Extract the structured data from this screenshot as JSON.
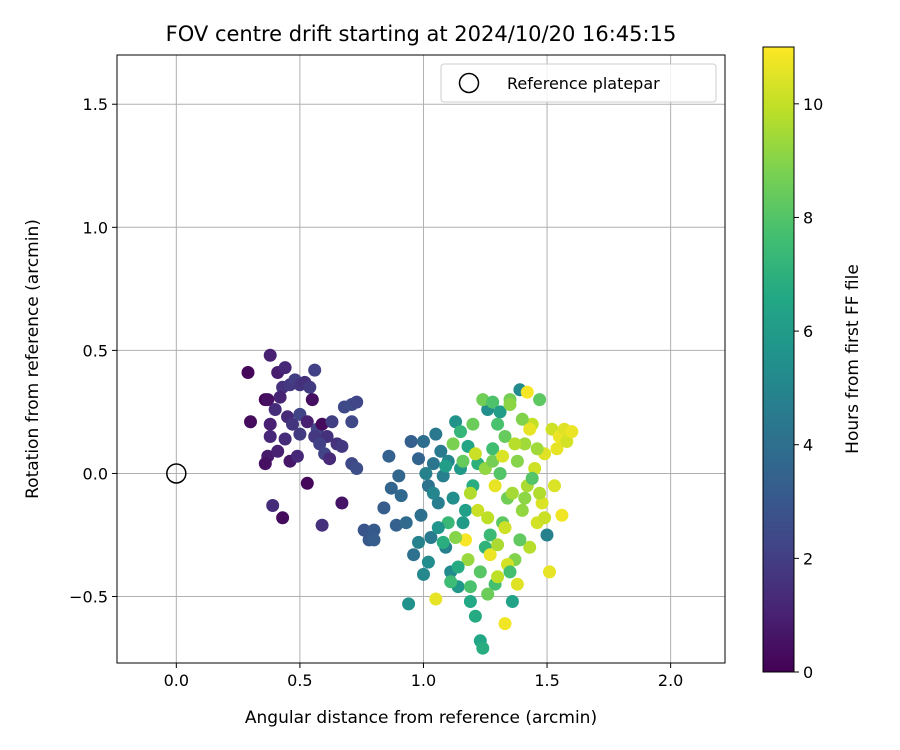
{
  "chart_data": {
    "type": "scatter",
    "title": "FOV centre drift starting at 2024/10/20 16:45:15",
    "xlabel": "Angular distance from reference (arcmin)",
    "ylabel": "Rotation from reference (arcmin)",
    "xlim": [
      -0.24,
      2.22
    ],
    "ylim": [
      -0.77,
      1.7
    ],
    "x_ticks": [
      0.0,
      0.5,
      1.0,
      1.5,
      2.0
    ],
    "y_ticks": [
      -0.5,
      0.0,
      0.5,
      1.0,
      1.5
    ],
    "x_tick_labels": [
      "0.0",
      "0.5",
      "1.0",
      "1.5",
      "2.0"
    ],
    "y_tick_labels": [
      "−0.5",
      "0.0",
      "0.5",
      "1.0",
      "1.5"
    ],
    "grid": true,
    "legend": {
      "position": "top-right",
      "entries": [
        {
          "label": "Reference platepar",
          "marker": "hollow-circle"
        }
      ]
    },
    "reference_point": {
      "x": 0.0,
      "y": 0.0
    },
    "colorbar": {
      "label": "Hours from first FF file",
      "colormap": "viridis",
      "range": [
        0,
        11
      ],
      "ticks": [
        0,
        2,
        4,
        6,
        8,
        10
      ],
      "tick_labels": [
        "0",
        "2",
        "4",
        "6",
        "8",
        "10"
      ]
    },
    "points": [
      {
        "x": 0.29,
        "y": 0.41,
        "c": 0.2
      },
      {
        "x": 0.36,
        "y": 0.3,
        "c": 0.1
      },
      {
        "x": 0.37,
        "y": 0.3,
        "c": 0.5
      },
      {
        "x": 0.38,
        "y": 0.48,
        "c": 1.0
      },
      {
        "x": 0.41,
        "y": 0.41,
        "c": 0.9
      },
      {
        "x": 0.44,
        "y": 0.43,
        "c": 1.2
      },
      {
        "x": 0.38,
        "y": 0.2,
        "c": 1.0
      },
      {
        "x": 0.3,
        "y": 0.21,
        "c": 0.3
      },
      {
        "x": 0.38,
        "y": 0.15,
        "c": 1.2
      },
      {
        "x": 0.4,
        "y": 0.26,
        "c": 1.4
      },
      {
        "x": 0.43,
        "y": 0.35,
        "c": 1.6
      },
      {
        "x": 0.46,
        "y": 0.36,
        "c": 1.8
      },
      {
        "x": 0.48,
        "y": 0.38,
        "c": 2.0
      },
      {
        "x": 0.5,
        "y": 0.36,
        "c": 1.7
      },
      {
        "x": 0.52,
        "y": 0.37,
        "c": 1.5
      },
      {
        "x": 0.54,
        "y": 0.35,
        "c": 1.9
      },
      {
        "x": 0.56,
        "y": 0.42,
        "c": 2.1
      },
      {
        "x": 0.42,
        "y": 0.31,
        "c": 1.1
      },
      {
        "x": 0.45,
        "y": 0.23,
        "c": 1.3
      },
      {
        "x": 0.47,
        "y": 0.2,
        "c": 1.7
      },
      {
        "x": 0.5,
        "y": 0.24,
        "c": 2.2
      },
      {
        "x": 0.53,
        "y": 0.21,
        "c": 1.0
      },
      {
        "x": 0.55,
        "y": 0.3,
        "c": 0.4
      },
      {
        "x": 0.57,
        "y": 0.18,
        "c": 2.3
      },
      {
        "x": 0.59,
        "y": 0.2,
        "c": 0.3
      },
      {
        "x": 0.61,
        "y": 0.15,
        "c": 1.5
      },
      {
        "x": 0.63,
        "y": 0.21,
        "c": 2.0
      },
      {
        "x": 0.65,
        "y": 0.12,
        "c": 1.6
      },
      {
        "x": 0.67,
        "y": 0.11,
        "c": 1.8
      },
      {
        "x": 0.68,
        "y": 0.27,
        "c": 2.4
      },
      {
        "x": 0.71,
        "y": 0.28,
        "c": 2.5
      },
      {
        "x": 0.73,
        "y": 0.29,
        "c": 2.3
      },
      {
        "x": 0.71,
        "y": 0.21,
        "c": 2.4
      },
      {
        "x": 0.37,
        "y": 0.07,
        "c": 0.8
      },
      {
        "x": 0.36,
        "y": 0.04,
        "c": 0.5
      },
      {
        "x": 0.41,
        "y": 0.09,
        "c": 1.0
      },
      {
        "x": 0.44,
        "y": 0.14,
        "c": 1.4
      },
      {
        "x": 0.46,
        "y": 0.05,
        "c": 0.7
      },
      {
        "x": 0.49,
        "y": 0.07,
        "c": 1.2
      },
      {
        "x": 0.5,
        "y": 0.16,
        "c": 1.9
      },
      {
        "x": 0.53,
        "y": -0.04,
        "c": 0.2
      },
      {
        "x": 0.56,
        "y": 0.15,
        "c": 1.8
      },
      {
        "x": 0.58,
        "y": 0.12,
        "c": 2.1
      },
      {
        "x": 0.6,
        "y": 0.08,
        "c": 2.2
      },
      {
        "x": 0.62,
        "y": 0.06,
        "c": 1.3
      },
      {
        "x": 0.67,
        "y": -0.12,
        "c": 0.6
      },
      {
        "x": 0.59,
        "y": -0.21,
        "c": 1.5
      },
      {
        "x": 0.39,
        "y": -0.13,
        "c": 1.4
      },
      {
        "x": 0.43,
        "y": -0.18,
        "c": 0.3
      },
      {
        "x": 0.71,
        "y": 0.04,
        "c": 2.4
      },
      {
        "x": 0.73,
        "y": 0.02,
        "c": 2.6
      },
      {
        "x": 0.76,
        "y": -0.23,
        "c": 2.9
      },
      {
        "x": 0.78,
        "y": -0.27,
        "c": 3.0
      },
      {
        "x": 0.8,
        "y": -0.23,
        "c": 3.1
      },
      {
        "x": 0.8,
        "y": -0.27,
        "c": 3.2
      },
      {
        "x": 0.84,
        "y": -0.14,
        "c": 3.2
      },
      {
        "x": 0.86,
        "y": 0.07,
        "c": 3.4
      },
      {
        "x": 0.87,
        "y": -0.06,
        "c": 3.5
      },
      {
        "x": 0.89,
        "y": -0.21,
        "c": 3.4
      },
      {
        "x": 0.9,
        "y": -0.01,
        "c": 3.6
      },
      {
        "x": 0.91,
        "y": -0.09,
        "c": 3.7
      },
      {
        "x": 0.93,
        "y": -0.2,
        "c": 3.8
      },
      {
        "x": 0.95,
        "y": 0.13,
        "c": 3.3
      },
      {
        "x": 0.96,
        "y": -0.33,
        "c": 4.1
      },
      {
        "x": 0.98,
        "y": 0.06,
        "c": 3.5
      },
      {
        "x": 0.99,
        "y": -0.17,
        "c": 4.0
      },
      {
        "x": 1.0,
        "y": 0.13,
        "c": 3.9
      },
      {
        "x": 1.02,
        "y": -0.05,
        "c": 4.2
      },
      {
        "x": 1.03,
        "y": -0.26,
        "c": 4.5
      },
      {
        "x": 1.04,
        "y": 0.04,
        "c": 4.3
      },
      {
        "x": 1.05,
        "y": 0.16,
        "c": 4.4
      },
      {
        "x": 1.06,
        "y": -0.12,
        "c": 4.6
      },
      {
        "x": 1.07,
        "y": 0.09,
        "c": 4.5
      },
      {
        "x": 1.08,
        "y": -0.01,
        "c": 4.7
      },
      {
        "x": 1.09,
        "y": -0.3,
        "c": 4.8
      },
      {
        "x": 1.1,
        "y": 0.05,
        "c": 5.0
      },
      {
        "x": 1.11,
        "y": -0.4,
        "c": 5.2
      },
      {
        "x": 1.12,
        "y": -0.1,
        "c": 5.4
      },
      {
        "x": 1.13,
        "y": 0.21,
        "c": 5.6
      },
      {
        "x": 1.14,
        "y": -0.46,
        "c": 5.8
      },
      {
        "x": 1.15,
        "y": 0.02,
        "c": 5.9
      },
      {
        "x": 1.16,
        "y": -0.2,
        "c": 6.0
      },
      {
        "x": 1.17,
        "y": -0.15,
        "c": 6.2
      },
      {
        "x": 1.18,
        "y": 0.11,
        "c": 6.4
      },
      {
        "x": 1.19,
        "y": -0.52,
        "c": 6.6
      },
      {
        "x": 1.2,
        "y": -0.05,
        "c": 6.8
      },
      {
        "x": 1.21,
        "y": -0.58,
        "c": 6.7
      },
      {
        "x": 1.22,
        "y": 0.04,
        "c": 7.0
      },
      {
        "x": 1.23,
        "y": -0.68,
        "c": 6.5
      },
      {
        "x": 1.24,
        "y": -0.71,
        "c": 6.8
      },
      {
        "x": 1.25,
        "y": -0.3,
        "c": 7.1
      },
      {
        "x": 1.26,
        "y": 0.26,
        "c": 5.4
      },
      {
        "x": 1.27,
        "y": -0.25,
        "c": 7.4
      },
      {
        "x": 1.28,
        "y": 0.1,
        "c": 7.6
      },
      {
        "x": 1.29,
        "y": -0.45,
        "c": 7.7
      },
      {
        "x": 1.3,
        "y": 0.2,
        "c": 7.8
      },
      {
        "x": 1.31,
        "y": 0.0,
        "c": 8.0
      },
      {
        "x": 1.32,
        "y": -0.2,
        "c": 8.2
      },
      {
        "x": 1.33,
        "y": 0.15,
        "c": 8.4
      },
      {
        "x": 1.34,
        "y": -0.1,
        "c": 8.6
      },
      {
        "x": 1.35,
        "y": 0.3,
        "c": 8.7
      },
      {
        "x": 1.36,
        "y": -0.52,
        "c": 6.3
      },
      {
        "x": 1.37,
        "y": -0.35,
        "c": 8.9
      },
      {
        "x": 1.38,
        "y": 0.05,
        "c": 9.0
      },
      {
        "x": 1.39,
        "y": 0.34,
        "c": 5.2
      },
      {
        "x": 1.4,
        "y": -0.15,
        "c": 9.2
      },
      {
        "x": 1.41,
        "y": 0.12,
        "c": 9.4
      },
      {
        "x": 1.42,
        "y": -0.05,
        "c": 9.6
      },
      {
        "x": 1.43,
        "y": -0.3,
        "c": 9.8
      },
      {
        "x": 1.44,
        "y": 0.2,
        "c": 10.0
      },
      {
        "x": 1.45,
        "y": 0.02,
        "c": 10.2
      },
      {
        "x": 1.46,
        "y": -0.2,
        "c": 10.3
      },
      {
        "x": 1.47,
        "y": 0.3,
        "c": 8.2
      },
      {
        "x": 1.48,
        "y": -0.12,
        "c": 10.4
      },
      {
        "x": 1.49,
        "y": 0.08,
        "c": 10.5
      },
      {
        "x": 1.5,
        "y": -0.25,
        "c": 4.8
      },
      {
        "x": 1.51,
        "y": -0.4,
        "c": 10.6
      },
      {
        "x": 1.52,
        "y": 0.18,
        "c": 10.2
      },
      {
        "x": 1.53,
        "y": -0.05,
        "c": 10.4
      },
      {
        "x": 1.54,
        "y": 0.1,
        "c": 10.6
      },
      {
        "x": 1.55,
        "y": 0.15,
        "c": 10.7
      },
      {
        "x": 1.56,
        "y": -0.17,
        "c": 10.8
      },
      {
        "x": 1.57,
        "y": 0.18,
        "c": 10.5
      },
      {
        "x": 1.58,
        "y": 0.13,
        "c": 10.3
      },
      {
        "x": 1.6,
        "y": 0.17,
        "c": 10.7
      },
      {
        "x": 1.05,
        "y": -0.51,
        "c": 10.6
      },
      {
        "x": 0.94,
        "y": -0.53,
        "c": 5.5
      },
      {
        "x": 1.33,
        "y": -0.61,
        "c": 10.8
      },
      {
        "x": 1.17,
        "y": -0.27,
        "c": 10.9
      },
      {
        "x": 1.2,
        "y": 0.2,
        "c": 8.5
      },
      {
        "x": 1.24,
        "y": 0.3,
        "c": 8.6
      },
      {
        "x": 1.28,
        "y": 0.29,
        "c": 7.9
      },
      {
        "x": 1.31,
        "y": 0.25,
        "c": 6.1
      },
      {
        "x": 1.35,
        "y": 0.28,
        "c": 9.1
      },
      {
        "x": 1.42,
        "y": 0.33,
        "c": 10.9
      },
      {
        "x": 1.12,
        "y": 0.12,
        "c": 8.8
      },
      {
        "x": 1.15,
        "y": 0.17,
        "c": 7.2
      },
      {
        "x": 1.19,
        "y": -0.08,
        "c": 9.7
      },
      {
        "x": 1.22,
        "y": -0.15,
        "c": 10.1
      },
      {
        "x": 1.26,
        "y": -0.18,
        "c": 9.9
      },
      {
        "x": 1.29,
        "y": -0.05,
        "c": 10.6
      },
      {
        "x": 1.33,
        "y": -0.22,
        "c": 10.2
      },
      {
        "x": 1.36,
        "y": -0.08,
        "c": 9.5
      },
      {
        "x": 1.39,
        "y": -0.27,
        "c": 8.3
      },
      {
        "x": 1.18,
        "y": -0.35,
        "c": 9.3
      },
      {
        "x": 1.23,
        "y": -0.4,
        "c": 8.1
      },
      {
        "x": 1.27,
        "y": -0.33,
        "c": 10.7
      },
      {
        "x": 1.3,
        "y": -0.29,
        "c": 9.6
      },
      {
        "x": 1.34,
        "y": -0.37,
        "c": 10.3
      },
      {
        "x": 1.38,
        "y": -0.45,
        "c": 10.5
      },
      {
        "x": 1.41,
        "y": -0.1,
        "c": 9.1
      },
      {
        "x": 1.44,
        "y": -0.02,
        "c": 8.0
      },
      {
        "x": 1.46,
        "y": 0.1,
        "c": 9.4
      },
      {
        "x": 1.1,
        "y": -0.2,
        "c": 7.3
      },
      {
        "x": 1.13,
        "y": -0.26,
        "c": 9.0
      },
      {
        "x": 1.16,
        "y": 0.05,
        "c": 8.4
      },
      {
        "x": 1.21,
        "y": 0.08,
        "c": 10.1
      },
      {
        "x": 1.25,
        "y": 0.02,
        "c": 9.2
      },
      {
        "x": 1.28,
        "y": 0.05,
        "c": 8.7
      },
      {
        "x": 1.32,
        "y": 0.07,
        "c": 10.4
      },
      {
        "x": 1.37,
        "y": 0.12,
        "c": 9.8
      },
      {
        "x": 1.4,
        "y": 0.22,
        "c": 8.9
      },
      {
        "x": 1.43,
        "y": 0.18,
        "c": 10.6
      },
      {
        "x": 1.47,
        "y": -0.08,
        "c": 9.7
      },
      {
        "x": 1.49,
        "y": -0.18,
        "c": 10.1
      },
      {
        "x": 1.08,
        "y": -0.28,
        "c": 6.9
      },
      {
        "x": 1.11,
        "y": -0.44,
        "c": 7.5
      },
      {
        "x": 1.14,
        "y": -0.38,
        "c": 6.7
      },
      {
        "x": 1.19,
        "y": -0.46,
        "c": 7.8
      },
      {
        "x": 1.26,
        "y": -0.49,
        "c": 8.5
      },
      {
        "x": 1.3,
        "y": -0.42,
        "c": 9.9
      },
      {
        "x": 1.35,
        "y": -0.4,
        "c": 7.7
      },
      {
        "x": 1.02,
        "y": -0.36,
        "c": 5.3
      },
      {
        "x": 0.98,
        "y": -0.28,
        "c": 4.9
      },
      {
        "x": 1.0,
        "y": -0.41,
        "c": 5.1
      },
      {
        "x": 1.06,
        "y": -0.22,
        "c": 5.7
      },
      {
        "x": 1.09,
        "y": 0.03,
        "c": 6.1
      },
      {
        "x": 1.01,
        "y": 0.0,
        "c": 4.8
      },
      {
        "x": 1.04,
        "y": -0.08,
        "c": 5.0
      }
    ]
  }
}
